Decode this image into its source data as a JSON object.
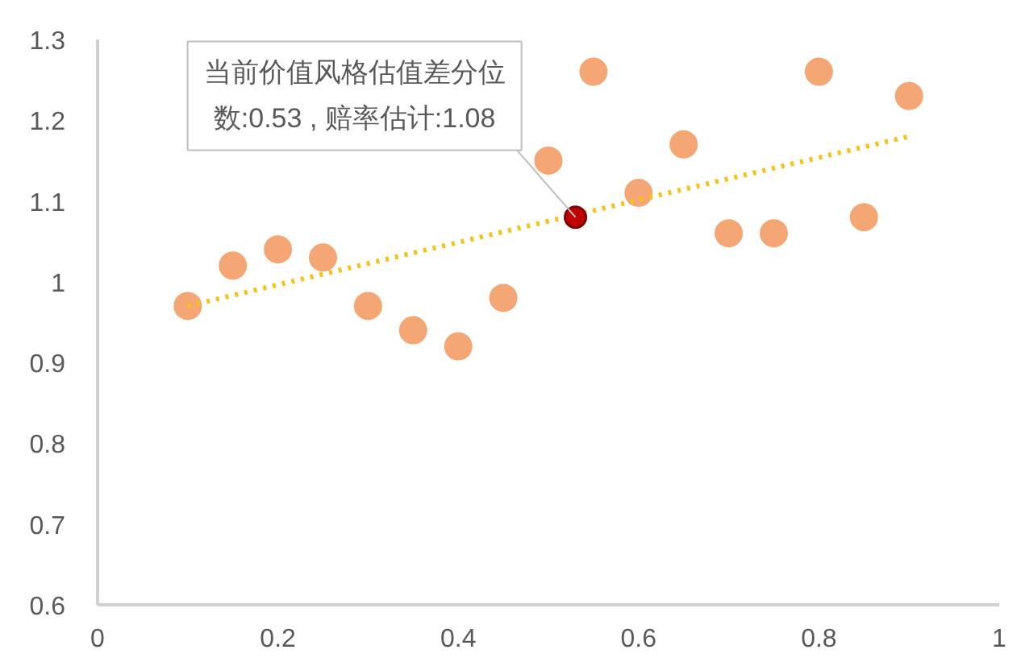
{
  "chart_data": {
    "type": "scatter",
    "x": [
      0.1,
      0.15,
      0.2,
      0.25,
      0.3,
      0.35,
      0.4,
      0.45,
      0.5,
      0.55,
      0.6,
      0.65,
      0.7,
      0.75,
      0.8,
      0.85,
      0.9
    ],
    "series": [
      {
        "color": "#f4a674",
        "values": [
          0.97,
          1.02,
          1.04,
          1.03,
          0.97,
          0.94,
          0.92,
          0.98,
          1.15,
          1.26,
          1.11,
          1.17,
          1.06,
          1.06,
          1.26,
          1.08,
          1.23
        ]
      },
      {
        "type": "line",
        "color": "#f2c318",
        "line_style": "dotted",
        "marker": "none",
        "x": [
          0.1,
          0.9
        ],
        "values": [
          0.97,
          1.18
        ]
      },
      {
        "color": "#c00000",
        "x": [
          0.53
        ],
        "values": [
          1.08
        ]
      }
    ],
    "marker": "circle",
    "xlim": [
      0,
      1
    ],
    "ylim": [
      0.6,
      1.3
    ],
    "xticks": [
      0,
      0.2,
      0.4,
      0.6,
      0.8,
      1
    ],
    "yticks": [
      0.6,
      0.7,
      0.8,
      0.9,
      1,
      1.1,
      1.2,
      1.3
    ],
    "grid": false,
    "annotations": [
      {
        "text": "当前价值风格估值差分位数:0.53 , 赔率估计:1.08",
        "x": 0.53,
        "y": 1.08
      }
    ]
  }
}
